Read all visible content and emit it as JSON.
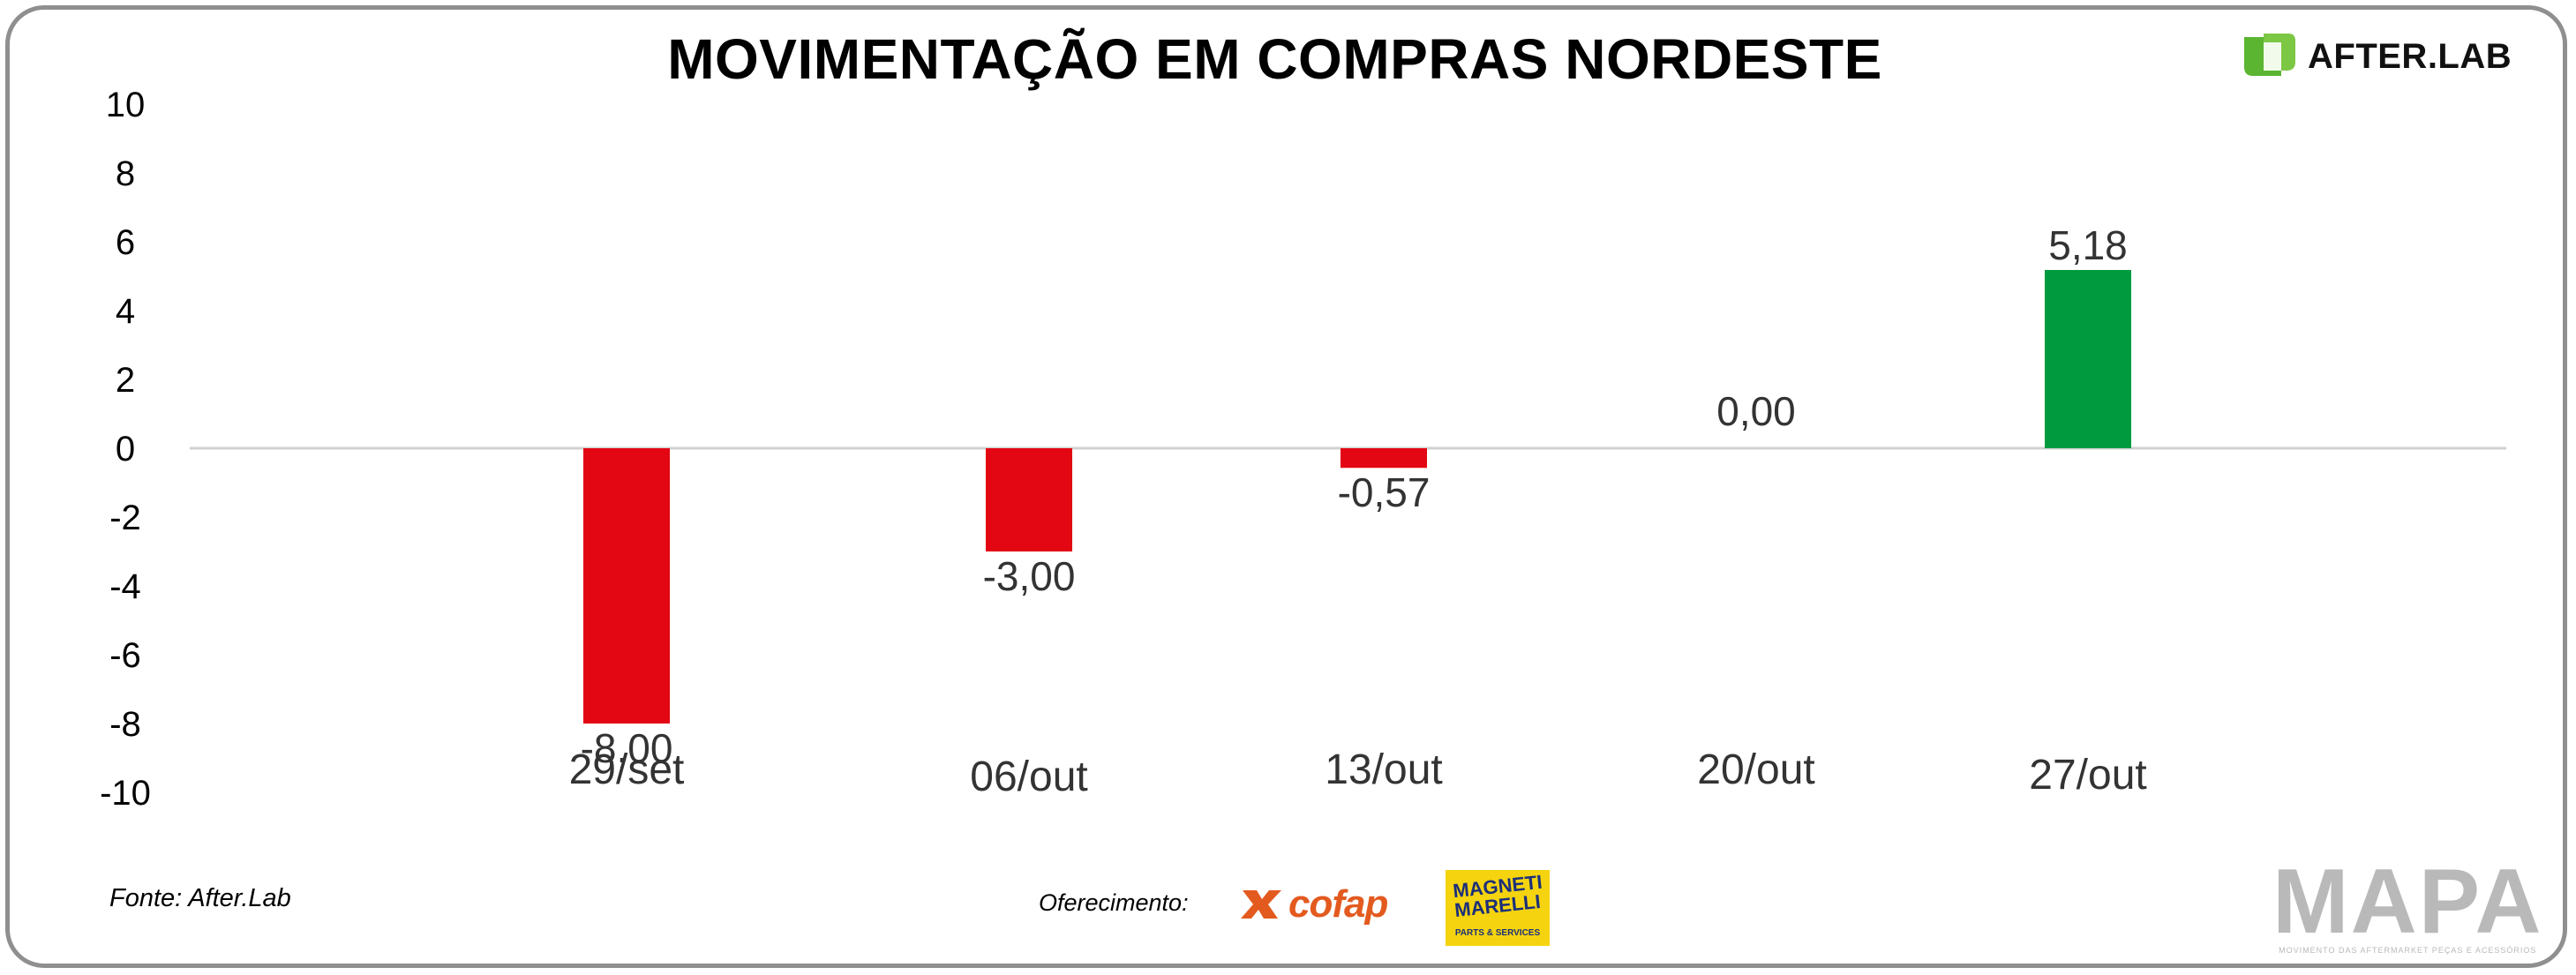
{
  "header": {
    "title": "MOVIMENTAÇÃO EM COMPRAS NORDESTE",
    "brand": "AFTER.LAB",
    "brand_icon": "after-lab-leaf-icon"
  },
  "footer": {
    "source": "Fonte: After.Lab",
    "offer_label": "Oferecimento:",
    "sponsor1": "cofap",
    "sponsor2_line1": "MAGNETI",
    "sponsor2_line2": "MARELLI",
    "sponsor2_sub": "PARTS & SERVICES",
    "mapa": "MAPA",
    "mapa_tagline": "MOVIMENTO DAS AFTERMARKET PEÇAS E ACESSÓRIOS"
  },
  "colors": {
    "negative": "#e30613",
    "positive": "#009a3e",
    "brand_green": "#5bb530"
  },
  "chart_data": {
    "type": "bar",
    "title": "MOVIMENTAÇÃO EM COMPRAS NORDESTE",
    "categories": [
      "29/set",
      "06/out",
      "13/out",
      "20/out",
      "27/out"
    ],
    "values": [
      -8.0,
      -3.0,
      -0.57,
      0.0,
      5.18
    ],
    "value_labels": [
      "-8,00",
      "-3,00",
      "-0,57",
      "0,00",
      "5,18"
    ],
    "ylim": [
      -10,
      10
    ],
    "yticks": [
      "10",
      "8",
      "6",
      "4",
      "2",
      "0",
      "-2",
      "-4",
      "-6",
      "-8",
      "-10"
    ],
    "xlabel": "",
    "ylabel": "",
    "grid": false,
    "legend": "none"
  }
}
